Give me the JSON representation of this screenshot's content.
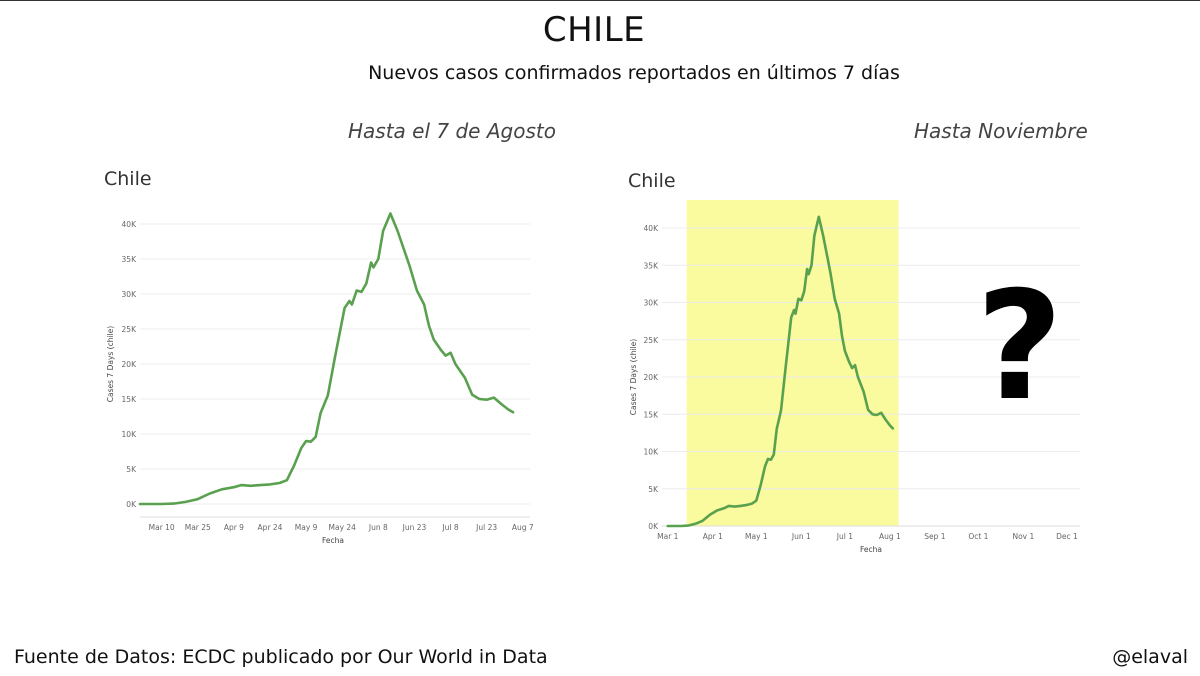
{
  "header": {
    "title": "CHILE",
    "subtitle": "Nuevos casos confirmados reportados en últimos 7 días"
  },
  "sections": {
    "left": "Hasta el 7 de Agosto",
    "right": "Hasta Noviembre"
  },
  "question_mark": "?",
  "footer": {
    "source": "Fuente de Datos: ECDC  publicado por Our World in Data",
    "handle": "@elaval"
  },
  "colors": {
    "line": "#59a14f",
    "highlight": "#fafa9e",
    "grid": "#ececec"
  },
  "chart_data": [
    {
      "type": "line",
      "title": "Chile",
      "xlabel": "Fecha",
      "ylabel": "Cases 7 Days (chile)",
      "ylim": [
        0,
        40000
      ],
      "yticks": [
        0,
        5000,
        10000,
        15000,
        20000,
        25000,
        30000,
        35000,
        40000
      ],
      "ytick_labels": [
        "0K",
        "5K",
        "10K",
        "15K",
        "20K",
        "25K",
        "30K",
        "35K",
        "40K"
      ],
      "xticks": [
        "2020-03-10",
        "2020-03-25",
        "2020-04-09",
        "2020-04-24",
        "2020-05-09",
        "2020-05-24",
        "2020-06-08",
        "2020-06-23",
        "2020-07-08",
        "2020-07-23",
        "2020-08-07"
      ],
      "xtick_labels": [
        "Mar 10",
        "Mar 25",
        "Apr 9",
        "Apr 24",
        "May 9",
        "May 24",
        "Jun 8",
        "Jun 23",
        "Jul 8",
        "Jul 23",
        "Aug 7"
      ],
      "xlim": [
        "2020-03-01",
        "2020-08-10"
      ],
      "grid": true,
      "series": [
        {
          "points": [
            [
              "2020-03-01",
              0
            ],
            [
              "2020-03-10",
              0
            ],
            [
              "2020-03-15",
              50
            ],
            [
              "2020-03-20",
              300
            ],
            [
              "2020-03-25",
              700
            ],
            [
              "2020-03-30",
              1500
            ],
            [
              "2020-04-04",
              2100
            ],
            [
              "2020-04-09",
              2400
            ],
            [
              "2020-04-12",
              2700
            ],
            [
              "2020-04-16",
              2600
            ],
            [
              "2020-04-20",
              2700
            ],
            [
              "2020-04-24",
              2800
            ],
            [
              "2020-04-28",
              3000
            ],
            [
              "2020-05-01",
              3400
            ],
            [
              "2020-05-04",
              5500
            ],
            [
              "2020-05-07",
              8000
            ],
            [
              "2020-05-09",
              9000
            ],
            [
              "2020-05-11",
              8900
            ],
            [
              "2020-05-13",
              9600
            ],
            [
              "2020-05-15",
              13000
            ],
            [
              "2020-05-18",
              15500
            ],
            [
              "2020-05-21",
              21000
            ],
            [
              "2020-05-23",
              24500
            ],
            [
              "2020-05-25",
              28000
            ],
            [
              "2020-05-27",
              29000
            ],
            [
              "2020-05-28",
              28500
            ],
            [
              "2020-05-30",
              30500
            ],
            [
              "2020-06-01",
              30300
            ],
            [
              "2020-06-03",
              31500
            ],
            [
              "2020-06-05",
              34500
            ],
            [
              "2020-06-06",
              33800
            ],
            [
              "2020-06-08",
              35000
            ],
            [
              "2020-06-10",
              39000
            ],
            [
              "2020-06-13",
              41500
            ],
            [
              "2020-06-16",
              39000
            ],
            [
              "2020-06-19",
              36000
            ],
            [
              "2020-06-21",
              34000
            ],
            [
              "2020-06-24",
              30500
            ],
            [
              "2020-06-27",
              28500
            ],
            [
              "2020-06-29",
              25500
            ],
            [
              "2020-07-01",
              23500
            ],
            [
              "2020-07-04",
              22000
            ],
            [
              "2020-07-06",
              21200
            ],
            [
              "2020-07-08",
              21600
            ],
            [
              "2020-07-10",
              20000
            ],
            [
              "2020-07-14",
              18000
            ],
            [
              "2020-07-17",
              15600
            ],
            [
              "2020-07-20",
              15000
            ],
            [
              "2020-07-23",
              14900
            ],
            [
              "2020-07-26",
              15200
            ],
            [
              "2020-07-29",
              14300
            ],
            [
              "2020-08-01",
              13500
            ],
            [
              "2020-08-03",
              13100
            ]
          ]
        }
      ]
    },
    {
      "type": "line",
      "title": "Chile",
      "xlabel": "Fecha",
      "ylabel": "Cases 7 Days (chile)",
      "ylim": [
        0,
        40000
      ],
      "yticks": [
        0,
        5000,
        10000,
        15000,
        20000,
        25000,
        30000,
        35000,
        40000
      ],
      "ytick_labels": [
        "0K",
        "5K",
        "10K",
        "15K",
        "20K",
        "25K",
        "30K",
        "35K",
        "40K"
      ],
      "xticks": [
        "2020-03-01",
        "2020-04-01",
        "2020-05-01",
        "2020-06-01",
        "2020-07-01",
        "2020-08-01",
        "2020-09-01",
        "2020-10-01",
        "2020-11-01",
        "2020-12-01"
      ],
      "xtick_labels": [
        "Mar 1",
        "Apr 1",
        "May 1",
        "Jun 1",
        "Jul 1",
        "Aug 1",
        "Sep 1",
        "Oct 1",
        "Nov 1",
        "Dec 1"
      ],
      "xlim": [
        "2020-02-26",
        "2020-12-10"
      ],
      "grid": true,
      "highlight_range": [
        "2020-03-14",
        "2020-08-07"
      ],
      "series": [
        {
          "points": [
            [
              "2020-03-01",
              0
            ],
            [
              "2020-03-10",
              0
            ],
            [
              "2020-03-15",
              50
            ],
            [
              "2020-03-20",
              300
            ],
            [
              "2020-03-25",
              700
            ],
            [
              "2020-03-30",
              1500
            ],
            [
              "2020-04-04",
              2100
            ],
            [
              "2020-04-09",
              2400
            ],
            [
              "2020-04-12",
              2700
            ],
            [
              "2020-04-16",
              2600
            ],
            [
              "2020-04-20",
              2700
            ],
            [
              "2020-04-24",
              2800
            ],
            [
              "2020-04-28",
              3000
            ],
            [
              "2020-05-01",
              3400
            ],
            [
              "2020-05-04",
              5500
            ],
            [
              "2020-05-07",
              8000
            ],
            [
              "2020-05-09",
              9000
            ],
            [
              "2020-05-11",
              8900
            ],
            [
              "2020-05-13",
              9600
            ],
            [
              "2020-05-15",
              13000
            ],
            [
              "2020-05-18",
              15500
            ],
            [
              "2020-05-21",
              21000
            ],
            [
              "2020-05-23",
              24500
            ],
            [
              "2020-05-25",
              28000
            ],
            [
              "2020-05-27",
              29000
            ],
            [
              "2020-05-28",
              28500
            ],
            [
              "2020-05-30",
              30500
            ],
            [
              "2020-06-01",
              30300
            ],
            [
              "2020-06-03",
              31500
            ],
            [
              "2020-06-05",
              34500
            ],
            [
              "2020-06-06",
              33800
            ],
            [
              "2020-06-08",
              35000
            ],
            [
              "2020-06-10",
              39000
            ],
            [
              "2020-06-13",
              41500
            ],
            [
              "2020-06-16",
              39000
            ],
            [
              "2020-06-19",
              36000
            ],
            [
              "2020-06-21",
              34000
            ],
            [
              "2020-06-24",
              30500
            ],
            [
              "2020-06-27",
              28500
            ],
            [
              "2020-06-29",
              25500
            ],
            [
              "2020-07-01",
              23500
            ],
            [
              "2020-07-04",
              22000
            ],
            [
              "2020-07-06",
              21200
            ],
            [
              "2020-07-08",
              21600
            ],
            [
              "2020-07-10",
              20000
            ],
            [
              "2020-07-14",
              18000
            ],
            [
              "2020-07-17",
              15600
            ],
            [
              "2020-07-20",
              15000
            ],
            [
              "2020-07-23",
              14900
            ],
            [
              "2020-07-26",
              15200
            ],
            [
              "2020-07-29",
              14300
            ],
            [
              "2020-08-01",
              13500
            ],
            [
              "2020-08-03",
              13100
            ]
          ]
        }
      ]
    }
  ]
}
